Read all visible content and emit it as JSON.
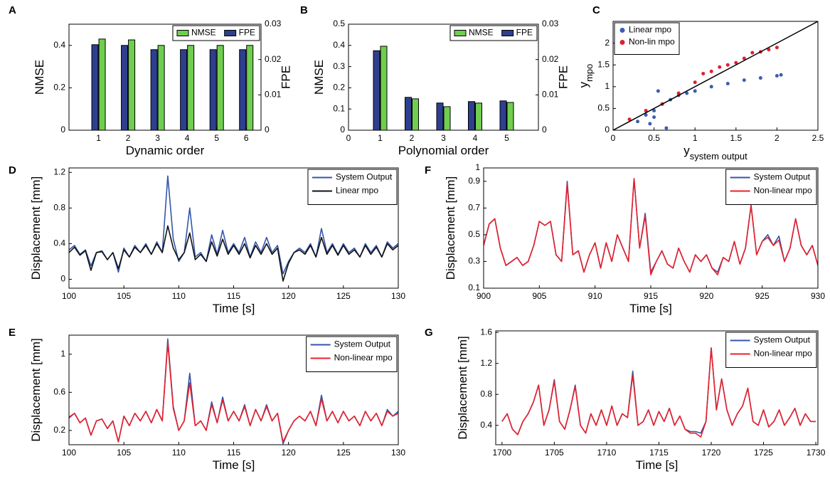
{
  "chart_data": [
    {
      "type": "bar",
      "label": "A",
      "xlabel": "Dynamic order",
      "ylabel": "NMSE",
      "y2label": "FPE",
      "x": [
        1,
        2,
        3,
        4,
        5,
        6
      ],
      "xlim": [
        0,
        6.5
      ],
      "xticks": [
        1,
        2,
        3,
        4,
        5,
        6
      ],
      "ylim": [
        0,
        0.5
      ],
      "yticks": [
        0,
        0.2,
        0.4
      ],
      "y2lim": [
        0,
        0.03
      ],
      "y2ticks": [
        0,
        0.01,
        0.02,
        0.03
      ],
      "legend": "upper right",
      "legend_orientation": "horizontal",
      "series": [
        {
          "name": "NMSE",
          "color": "#6fce4f",
          "values": [
            0.43,
            0.426,
            0.4,
            0.4,
            0.4,
            0.4
          ]
        },
        {
          "name": "FPE",
          "color": "#2e3f8f",
          "axis": "y2",
          "values": [
            0.0242,
            0.024,
            0.0228,
            0.0228,
            0.0228,
            0.0228
          ]
        }
      ]
    },
    {
      "type": "bar",
      "label": "B",
      "xlabel": "Polynomial order",
      "ylabel": "NMSE",
      "y2label": "FPE",
      "x": [
        1,
        2,
        3,
        4,
        5
      ],
      "xlim": [
        0,
        6
      ],
      "xticks": [
        0,
        1,
        2,
        3,
        4,
        5
      ],
      "ylim": [
        0,
        0.5
      ],
      "yticks": [
        0,
        0.1,
        0.2,
        0.3,
        0.4,
        0.5
      ],
      "y2lim": [
        0,
        0.03
      ],
      "y2ticks": [
        0,
        0.01,
        0.02,
        0.03
      ],
      "legend": "upper right",
      "legend_orientation": "horizontal",
      "series": [
        {
          "name": "NMSE",
          "color": "#6fce4f",
          "values": [
            0.396,
            0.148,
            0.111,
            0.128,
            0.131
          ]
        },
        {
          "name": "FPE",
          "color": "#2e3f8f",
          "axis": "y2",
          "values": [
            0.0225,
            0.0093,
            0.0077,
            0.0081,
            0.0083
          ]
        }
      ]
    },
    {
      "type": "scatter",
      "label": "C",
      "xlabel": "y",
      "xlabel_sub": "system output",
      "ylabel": "y",
      "ylabel_sub": "mpo",
      "xlim": [
        0,
        2.5
      ],
      "xticks": [
        0,
        0.5,
        1,
        1.5,
        2,
        2.5
      ],
      "ylim": [
        0,
        2.5
      ],
      "yticks": [
        0,
        0.5,
        1,
        1.5,
        2
      ],
      "identity_line": true,
      "legend": "upper left",
      "legend_orientation": "vertical",
      "series": [
        {
          "name": "Linear mpo",
          "color": "#3a5fb0",
          "x": [
            0.3,
            0.4,
            0.45,
            0.5,
            0.5,
            0.55,
            0.6,
            0.65,
            0.7,
            0.8,
            0.9,
            1.0,
            1.2,
            1.4,
            1.6,
            1.8,
            2.0,
            2.05
          ],
          "y": [
            0.2,
            0.35,
            0.15,
            0.45,
            0.3,
            0.9,
            0.6,
            0.05,
            0.7,
            0.8,
            0.85,
            0.9,
            1.0,
            1.07,
            1.15,
            1.2,
            1.25,
            1.27
          ]
        },
        {
          "name": "Non-lin mpo",
          "color": "#e02030",
          "x": [
            0.2,
            0.4,
            0.6,
            0.8,
            1.0,
            1.1,
            1.2,
            1.3,
            1.4,
            1.5,
            1.6,
            1.7,
            1.8,
            1.9,
            2.0
          ],
          "y": [
            0.25,
            0.45,
            0.6,
            0.85,
            1.1,
            1.3,
            1.35,
            1.45,
            1.5,
            1.55,
            1.65,
            1.78,
            1.8,
            1.85,
            1.9
          ]
        }
      ]
    },
    {
      "type": "line",
      "label": "D",
      "xlabel": "Time [s]",
      "ylabel": "Displacement [mm]",
      "xlim": [
        100,
        130
      ],
      "xticks": [
        100,
        105,
        110,
        115,
        120,
        125,
        130
      ],
      "ylim": [
        -0.1,
        1.25
      ],
      "yticks": [
        0,
        0.4,
        0.8,
        1.2
      ],
      "legend": "upper right",
      "legend_orientation": "vertical",
      "x": [
        100,
        100.5,
        101,
        101.5,
        102,
        102.5,
        103,
        103.5,
        104,
        104.5,
        105,
        105.5,
        106,
        106.5,
        107,
        107.5,
        108,
        108.5,
        109,
        109.5,
        110,
        110.5,
        111,
        111.5,
        112,
        112.5,
        113,
        113.5,
        114,
        114.5,
        115,
        115.5,
        116,
        116.5,
        117,
        117.5,
        118,
        118.5,
        119,
        119.5,
        120,
        120.5,
        121,
        121.5,
        122,
        122.5,
        123,
        123.5,
        124,
        124.5,
        125,
        125.5,
        126,
        126.5,
        127,
        127.5,
        128,
        128.5,
        129,
        129.5,
        130
      ],
      "series": [
        {
          "name": "System Output",
          "color": "#3355aa",
          "values": [
            0.33,
            0.38,
            0.28,
            0.33,
            0.15,
            0.3,
            0.32,
            0.22,
            0.3,
            0.08,
            0.35,
            0.25,
            0.38,
            0.3,
            0.4,
            0.28,
            0.42,
            0.3,
            1.16,
            0.45,
            0.2,
            0.3,
            0.8,
            0.25,
            0.3,
            0.2,
            0.5,
            0.28,
            0.55,
            0.3,
            0.4,
            0.3,
            0.47,
            0.25,
            0.42,
            0.3,
            0.47,
            0.3,
            0.38,
            0.06,
            0.2,
            0.3,
            0.35,
            0.3,
            0.4,
            0.25,
            0.57,
            0.3,
            0.4,
            0.28,
            0.4,
            0.3,
            0.35,
            0.25,
            0.4,
            0.3,
            0.38,
            0.25,
            0.42,
            0.35,
            0.4
          ]
        },
        {
          "name": "Linear mpo",
          "color": "#111111",
          "values": [
            0.3,
            0.36,
            0.27,
            0.32,
            0.1,
            0.3,
            0.31,
            0.22,
            0.3,
            0.12,
            0.33,
            0.25,
            0.36,
            0.3,
            0.38,
            0.28,
            0.4,
            0.3,
            0.6,
            0.35,
            0.22,
            0.3,
            0.52,
            0.22,
            0.28,
            0.2,
            0.42,
            0.26,
            0.45,
            0.28,
            0.38,
            0.28,
            0.4,
            0.24,
            0.38,
            0.28,
            0.4,
            0.28,
            0.35,
            -0.02,
            0.18,
            0.3,
            0.33,
            0.28,
            0.38,
            0.25,
            0.47,
            0.28,
            0.38,
            0.27,
            0.38,
            0.28,
            0.33,
            0.25,
            0.38,
            0.28,
            0.36,
            0.25,
            0.4,
            0.33,
            0.38
          ]
        }
      ]
    },
    {
      "type": "line",
      "label": "E",
      "xlabel": "Time [s]",
      "ylabel": "Displacement [mm]",
      "xlim": [
        100,
        130
      ],
      "xticks": [
        100,
        105,
        110,
        115,
        120,
        125,
        130
      ],
      "ylim": [
        0.05,
        1.2
      ],
      "yticks": [
        0.2,
        0.6,
        1
      ],
      "legend": "upper right",
      "legend_orientation": "vertical",
      "x": [
        100,
        100.5,
        101,
        101.5,
        102,
        102.5,
        103,
        103.5,
        104,
        104.5,
        105,
        105.5,
        106,
        106.5,
        107,
        107.5,
        108,
        108.5,
        109,
        109.5,
        110,
        110.5,
        111,
        111.5,
        112,
        112.5,
        113,
        113.5,
        114,
        114.5,
        115,
        115.5,
        116,
        116.5,
        117,
        117.5,
        118,
        118.5,
        119,
        119.5,
        120,
        120.5,
        121,
        121.5,
        122,
        122.5,
        123,
        123.5,
        124,
        124.5,
        125,
        125.5,
        126,
        126.5,
        127,
        127.5,
        128,
        128.5,
        129,
        129.5,
        130
      ],
      "series": [
        {
          "name": "System Output",
          "color": "#3355aa",
          "values": [
            0.33,
            0.38,
            0.28,
            0.33,
            0.15,
            0.3,
            0.32,
            0.22,
            0.3,
            0.08,
            0.35,
            0.25,
            0.38,
            0.3,
            0.4,
            0.28,
            0.42,
            0.3,
            1.16,
            0.45,
            0.2,
            0.3,
            0.8,
            0.25,
            0.3,
            0.2,
            0.5,
            0.28,
            0.55,
            0.3,
            0.4,
            0.3,
            0.47,
            0.25,
            0.42,
            0.3,
            0.47,
            0.3,
            0.38,
            0.06,
            0.2,
            0.3,
            0.35,
            0.3,
            0.4,
            0.25,
            0.57,
            0.3,
            0.4,
            0.28,
            0.4,
            0.3,
            0.35,
            0.25,
            0.4,
            0.3,
            0.38,
            0.25,
            0.42,
            0.35,
            0.4
          ]
        },
        {
          "name": "Non-linear mpo",
          "color": "#e8202a",
          "values": [
            0.34,
            0.38,
            0.28,
            0.33,
            0.15,
            0.3,
            0.32,
            0.22,
            0.3,
            0.08,
            0.35,
            0.25,
            0.38,
            0.3,
            0.4,
            0.28,
            0.42,
            0.3,
            1.12,
            0.43,
            0.2,
            0.3,
            0.7,
            0.25,
            0.3,
            0.2,
            0.47,
            0.28,
            0.52,
            0.3,
            0.4,
            0.3,
            0.45,
            0.25,
            0.42,
            0.3,
            0.45,
            0.3,
            0.38,
            0.08,
            0.2,
            0.3,
            0.35,
            0.3,
            0.4,
            0.25,
            0.53,
            0.3,
            0.4,
            0.28,
            0.4,
            0.3,
            0.35,
            0.25,
            0.4,
            0.3,
            0.38,
            0.25,
            0.4,
            0.35,
            0.38
          ]
        }
      ]
    },
    {
      "type": "line",
      "label": "F",
      "xlabel": "Time [s]",
      "ylabel": "Displacement [mm]",
      "xlim": [
        900,
        930
      ],
      "xticks": [
        900,
        905,
        910,
        915,
        920,
        925,
        930
      ],
      "ylim": [
        0.1,
        1
      ],
      "yticks": [
        0.1,
        0.3,
        0.5,
        0.7,
        0.9,
        1
      ],
      "legend": "upper right",
      "legend_orientation": "vertical",
      "x": [
        900,
        900.5,
        901,
        901.5,
        902,
        902.5,
        903,
        903.5,
        904,
        904.5,
        905,
        905.5,
        906,
        906.5,
        907,
        907.5,
        908,
        908.5,
        909,
        909.5,
        910,
        910.5,
        911,
        911.5,
        912,
        912.5,
        913,
        913.5,
        914,
        914.5,
        915,
        915.5,
        916,
        916.5,
        917,
        917.5,
        918,
        918.5,
        919,
        919.5,
        920,
        920.5,
        921,
        921.5,
        922,
        922.5,
        923,
        923.5,
        924,
        924.5,
        925,
        925.5,
        926,
        926.5,
        927,
        927.5,
        928,
        928.5,
        929,
        929.5,
        930
      ],
      "series": [
        {
          "name": "System Output",
          "color": "#3355aa",
          "values": [
            0.42,
            0.58,
            0.62,
            0.4,
            0.27,
            0.3,
            0.33,
            0.27,
            0.3,
            0.42,
            0.6,
            0.57,
            0.6,
            0.35,
            0.3,
            0.9,
            0.35,
            0.38,
            0.22,
            0.35,
            0.44,
            0.25,
            0.44,
            0.3,
            0.5,
            0.4,
            0.3,
            0.92,
            0.4,
            0.66,
            0.22,
            0.3,
            0.38,
            0.28,
            0.25,
            0.4,
            0.3,
            0.22,
            0.35,
            0.3,
            0.35,
            0.25,
            0.22,
            0.33,
            0.3,
            0.45,
            0.28,
            0.4,
            0.72,
            0.35,
            0.45,
            0.5,
            0.42,
            0.49,
            0.3,
            0.4,
            0.62,
            0.42,
            0.35,
            0.42,
            0.27
          ]
        },
        {
          "name": "Non-linear mpo",
          "color": "#e8202a",
          "values": [
            0.42,
            0.58,
            0.62,
            0.4,
            0.27,
            0.3,
            0.33,
            0.27,
            0.3,
            0.42,
            0.6,
            0.57,
            0.6,
            0.35,
            0.3,
            0.88,
            0.35,
            0.38,
            0.22,
            0.35,
            0.44,
            0.25,
            0.44,
            0.3,
            0.5,
            0.4,
            0.3,
            0.92,
            0.4,
            0.64,
            0.2,
            0.3,
            0.38,
            0.28,
            0.25,
            0.4,
            0.3,
            0.22,
            0.35,
            0.3,
            0.35,
            0.25,
            0.2,
            0.33,
            0.3,
            0.45,
            0.28,
            0.4,
            0.72,
            0.35,
            0.45,
            0.48,
            0.42,
            0.46,
            0.3,
            0.4,
            0.62,
            0.42,
            0.35,
            0.42,
            0.27
          ]
        }
      ]
    },
    {
      "type": "line",
      "label": "G",
      "xlabel": "Time [s]",
      "ylabel": "Displacement [mm]",
      "xlim": [
        1699.4,
        1730.2
      ],
      "xticks": [
        1700,
        1705,
        1710,
        1715,
        1720,
        1725,
        1730
      ],
      "ylim": [
        0.15,
        1.62
      ],
      "yticks": [
        0.4,
        0.8,
        1.2,
        1.6
      ],
      "legend": "upper right",
      "legend_orientation": "vertical",
      "x": [
        1700,
        1700.5,
        1701,
        1701.5,
        1702,
        1702.5,
        1703,
        1703.5,
        1704,
        1704.5,
        1705,
        1705.5,
        1706,
        1706.5,
        1707,
        1707.5,
        1708,
        1708.5,
        1709,
        1709.5,
        1710,
        1710.5,
        1711,
        1711.5,
        1712,
        1712.5,
        1713,
        1713.5,
        1714,
        1714.5,
        1715,
        1715.5,
        1716,
        1716.5,
        1717,
        1717.5,
        1718,
        1718.5,
        1719,
        1719.5,
        1720,
        1720.5,
        1721,
        1721.5,
        1722,
        1722.5,
        1723,
        1723.5,
        1724,
        1724.5,
        1725,
        1725.5,
        1726,
        1726.5,
        1727,
        1727.5,
        1728,
        1728.5,
        1729,
        1729.5,
        1730
      ],
      "series": [
        {
          "name": "System Output",
          "color": "#3355aa",
          "values": [
            0.45,
            0.55,
            0.35,
            0.28,
            0.45,
            0.55,
            0.7,
            0.92,
            0.4,
            0.6,
            0.99,
            0.45,
            0.35,
            0.6,
            0.92,
            0.4,
            0.3,
            0.55,
            0.4,
            0.6,
            0.4,
            0.65,
            0.4,
            0.55,
            0.5,
            1.1,
            0.4,
            0.45,
            0.6,
            0.4,
            0.58,
            0.45,
            0.62,
            0.4,
            0.52,
            0.35,
            0.32,
            0.32,
            0.3,
            0.45,
            1.4,
            0.6,
            1.0,
            0.6,
            0.4,
            0.55,
            0.65,
            0.88,
            0.45,
            0.4,
            0.6,
            0.38,
            0.45,
            0.6,
            0.4,
            0.5,
            0.62,
            0.4,
            0.55,
            0.45,
            0.45
          ]
        },
        {
          "name": "Non-linear mpo",
          "color": "#e8202a",
          "values": [
            0.45,
            0.55,
            0.35,
            0.28,
            0.45,
            0.55,
            0.7,
            0.92,
            0.4,
            0.6,
            0.97,
            0.45,
            0.35,
            0.6,
            0.9,
            0.4,
            0.3,
            0.55,
            0.4,
            0.6,
            0.4,
            0.65,
            0.4,
            0.55,
            0.5,
            1.05,
            0.4,
            0.45,
            0.6,
            0.4,
            0.58,
            0.45,
            0.62,
            0.4,
            0.52,
            0.35,
            0.3,
            0.3,
            0.25,
            0.45,
            1.4,
            0.6,
            1.0,
            0.6,
            0.4,
            0.55,
            0.65,
            0.88,
            0.45,
            0.4,
            0.6,
            0.38,
            0.45,
            0.6,
            0.4,
            0.5,
            0.62,
            0.4,
            0.55,
            0.45,
            0.45
          ]
        }
      ]
    }
  ]
}
